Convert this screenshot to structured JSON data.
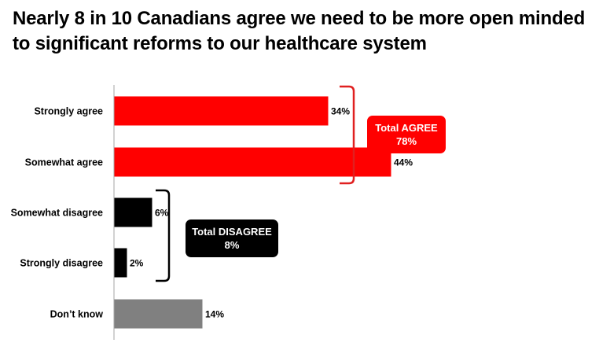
{
  "title": "Nearly 8 in 10 Canadians agree we need to be more open minded to significant reforms to our healthcare system",
  "chart_data": {
    "type": "bar",
    "orientation": "horizontal",
    "categories": [
      "Strongly agree",
      "Somewhat agree",
      "Somewhat disagree",
      "Strongly disagree",
      "Don’t know"
    ],
    "values": [
      34,
      44,
      6,
      2,
      14
    ],
    "value_labels": [
      "34%",
      "44%",
      "6%",
      "2%",
      "14%"
    ],
    "colors": [
      "#ff0000",
      "#ff0000",
      "#000000",
      "#000000",
      "#808080"
    ],
    "xlim": [
      0,
      50
    ],
    "grid": false,
    "groups": [
      {
        "label": "Total AGREE",
        "value": "78%",
        "color": "#ff0000",
        "bracket_color": "#e02020",
        "members": [
          0,
          1
        ]
      },
      {
        "label": "Total DISAGREE",
        "value": "8%",
        "color": "#000000",
        "bracket_color": "#000000",
        "members": [
          2,
          3
        ]
      }
    ]
  }
}
